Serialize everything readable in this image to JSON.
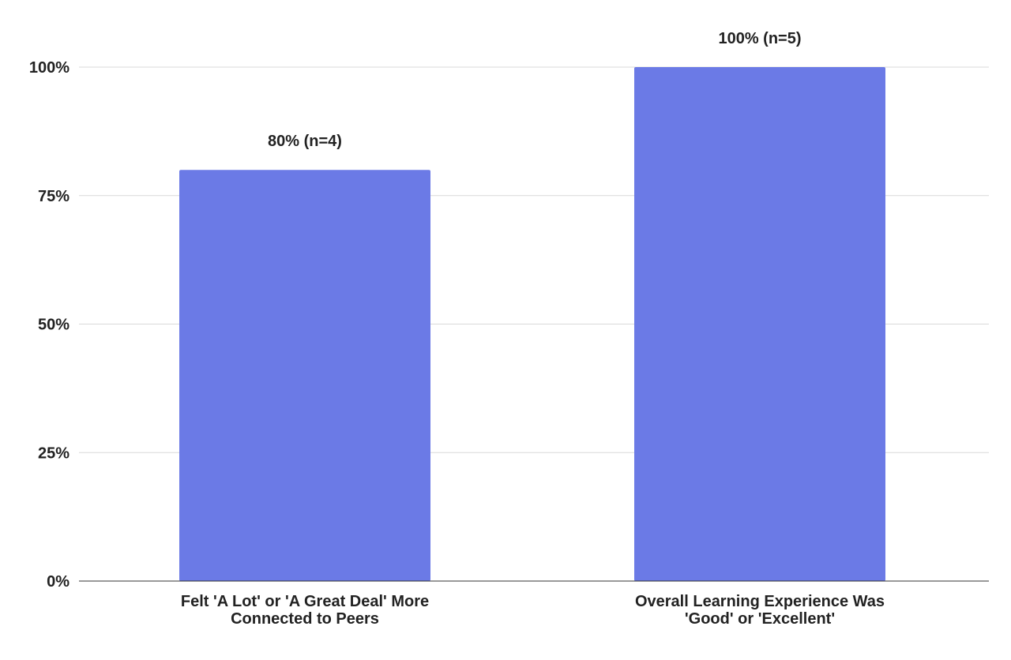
{
  "chart_data": {
    "type": "bar",
    "categories": [
      [
        "Felt 'A Lot' or 'A Great Deal' More",
        "Connected to Peers"
      ],
      [
        "Overall Learning Experience Was",
        "'Good' or 'Excellent'"
      ]
    ],
    "values": [
      80,
      100
    ],
    "data_labels": [
      "80% (n=4)",
      "100% (n=5)"
    ],
    "bar_color": "#6b7ae6",
    "ylim": [
      0,
      100
    ],
    "yticks": [
      0,
      25,
      50,
      75,
      100
    ],
    "ytick_labels": [
      "0%",
      "25%",
      "50%",
      "75%",
      "100%"
    ],
    "grid": true,
    "title": "",
    "xlabel": "",
    "ylabel": ""
  }
}
